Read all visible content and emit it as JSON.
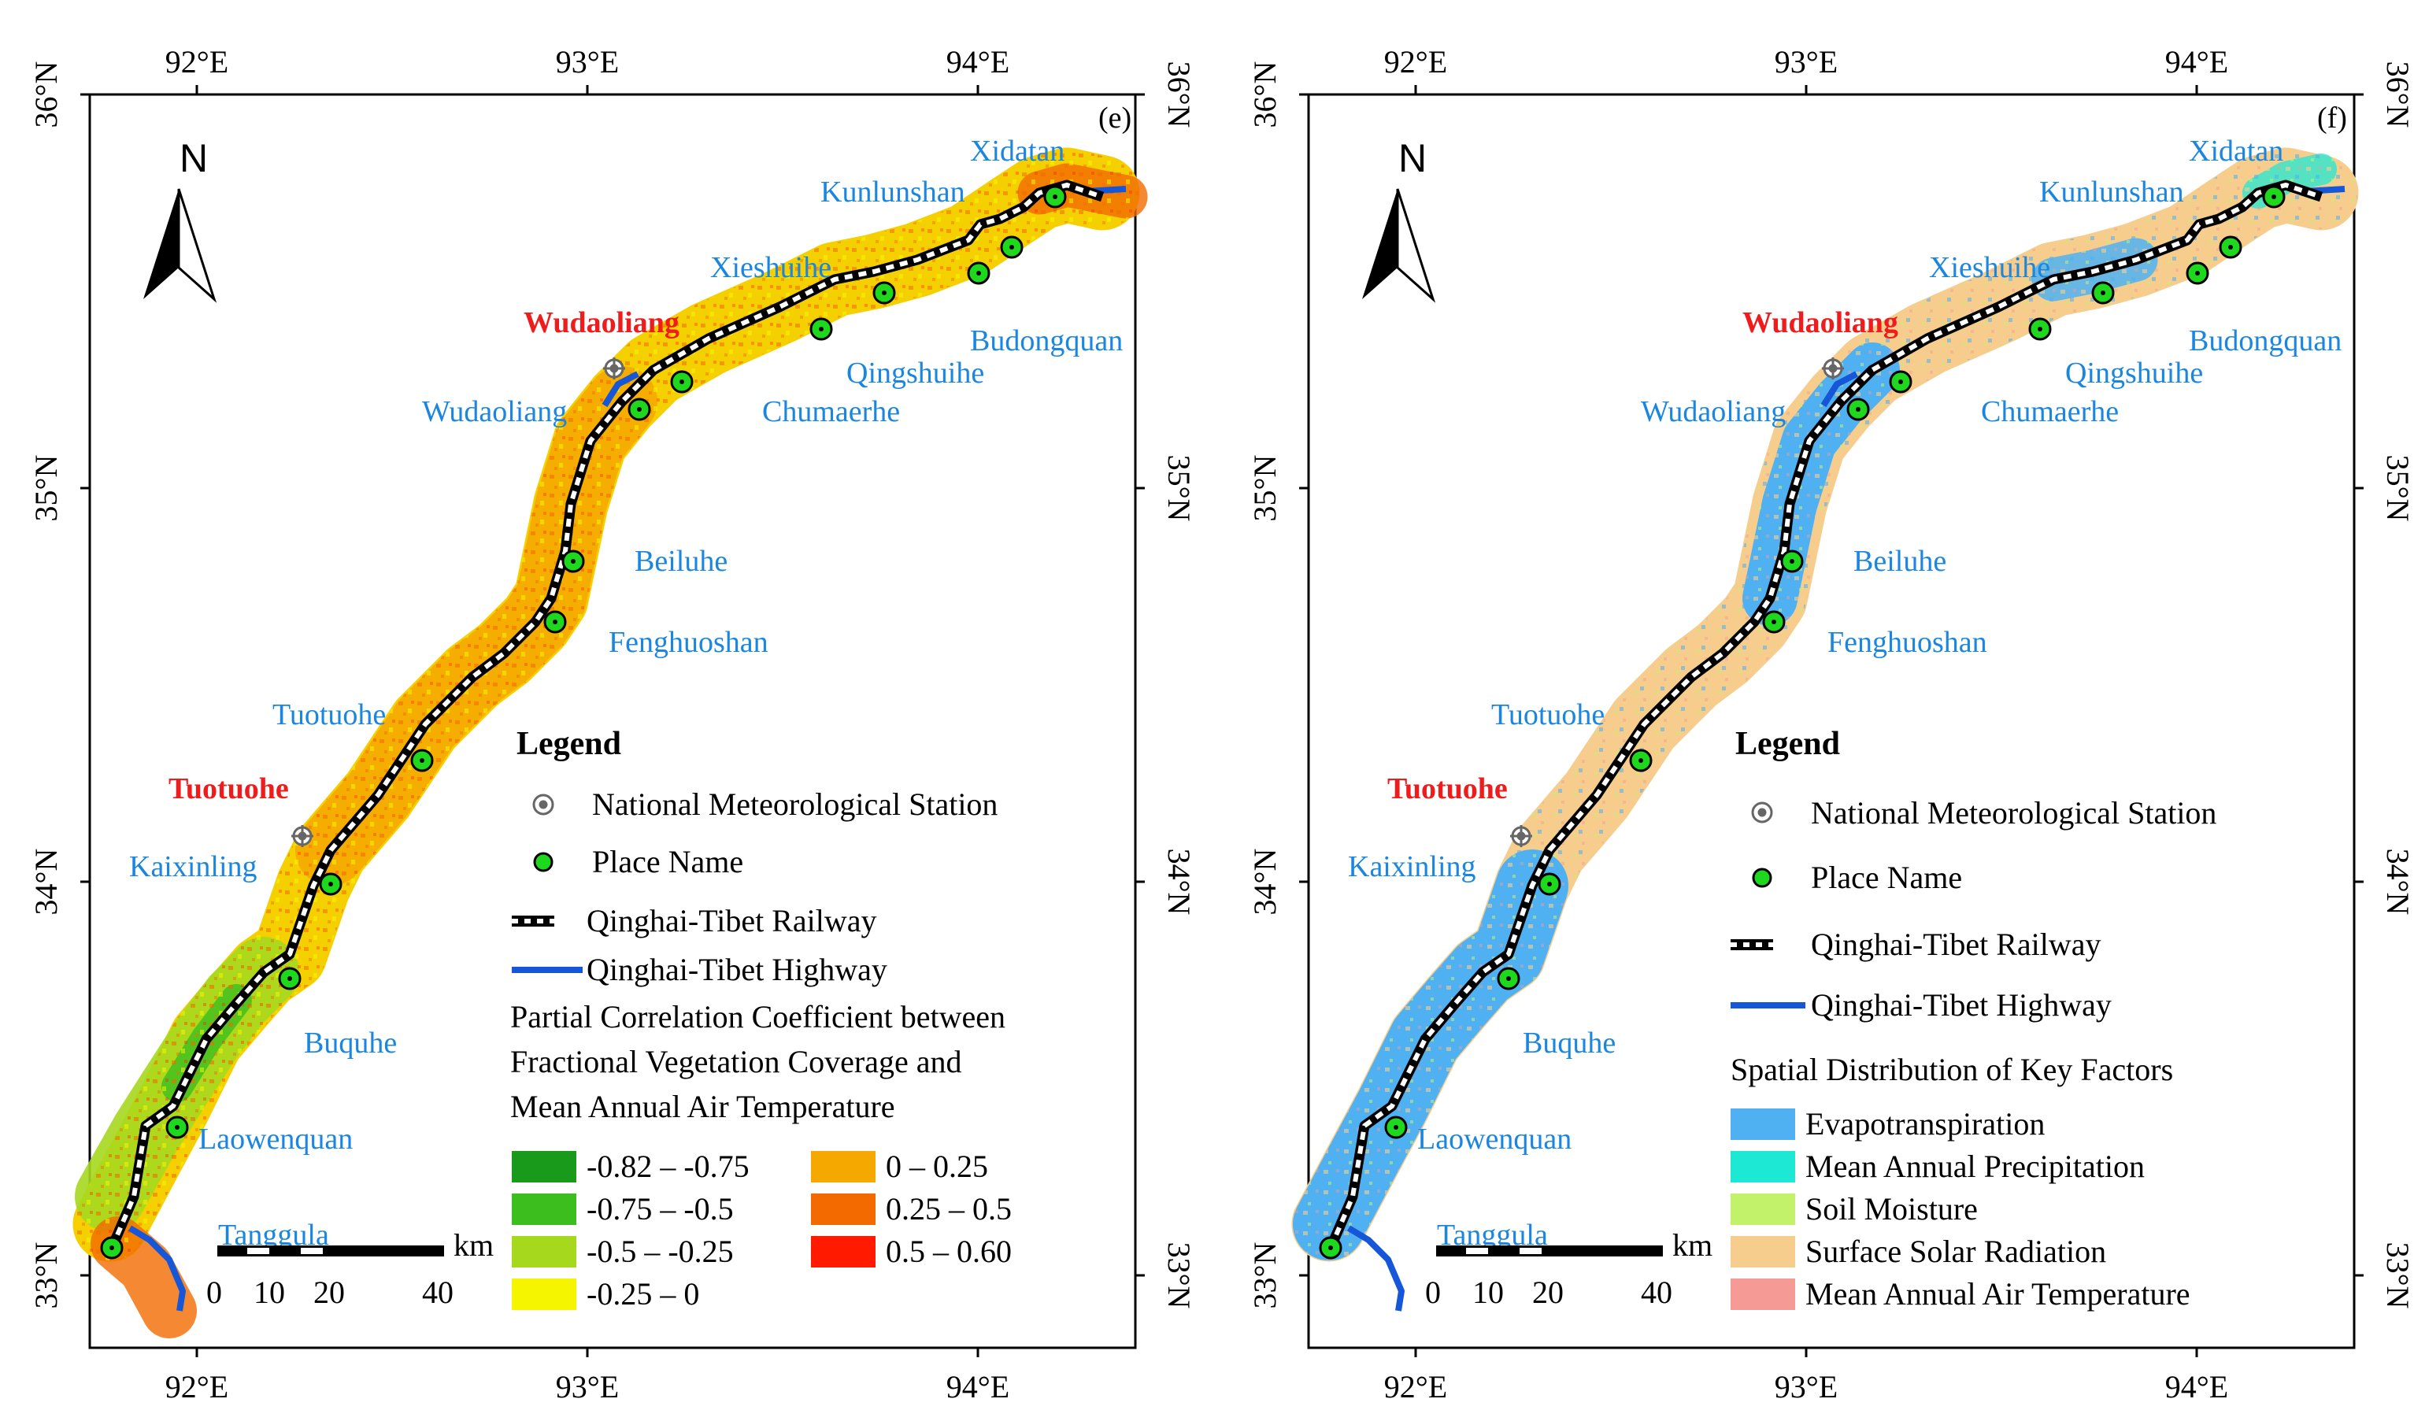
{
  "axes": {
    "top_ticks": [
      "92°E",
      "93°E",
      "94°E"
    ],
    "bottom_ticks": [
      "92°E",
      "93°E",
      "94°E"
    ],
    "left_ticks": [
      "36°N",
      "35°N",
      "34°N",
      "33°N"
    ],
    "right_ticks": [
      "36°N",
      "35°N",
      "34°N",
      "33°N"
    ]
  },
  "north_arrow": "N",
  "scale_bar": {
    "ticks": [
      "0",
      "10",
      "20",
      "40"
    ],
    "unit": "km"
  },
  "places": {
    "xidatan": "Xidatan",
    "kunlunshan": "Kunlunshan",
    "xieshuihe": "Xieshuihe",
    "budongquan": "Budongquan",
    "qingshuihe": "Qingshuihe",
    "chumaerhe": "Chumaerhe",
    "wudaoliang": "Wudaoliang",
    "beiluhe": "Beiluhe",
    "fenghuoshan": "Fenghuoshan",
    "tuotuohe": "Tuotuohe",
    "kaixinling": "Kaixinling",
    "buquhe": "Buquhe",
    "laowenquan": "Laowenquan",
    "tanggula": "Tanggula"
  },
  "stations": {
    "wudaoliang": "Wudaoliang",
    "tuotuohe": "Tuotuohe"
  },
  "panel_e": {
    "label": "(e)",
    "legend": {
      "title": "Legend",
      "station": "National Meteorological Station",
      "place": "Place Name",
      "railway": "Qinghai-Tibet Railway",
      "highway": "Qinghai-Tibet Highway",
      "caption_line1": "Partial Correlation Coefficient between",
      "caption_line2": "Fractional Vegetation Coverage and",
      "caption_line3": "Mean Annual Air Temperature",
      "classes": [
        {
          "label": "-0.82 – -0.75",
          "color": "#1a9a1a"
        },
        {
          "label": "-0.75 – -0.5",
          "color": "#3cbf1e"
        },
        {
          "label": "-0.5 – -0.25",
          "color": "#a6d81e"
        },
        {
          "label": "-0.25 – 0",
          "color": "#f5f500"
        },
        {
          "label": "0 – 0.25",
          "color": "#f5a800"
        },
        {
          "label": "0.25 – 0.5",
          "color": "#f26a00"
        },
        {
          "label": "0.5 – 0.60",
          "color": "#ff1a00"
        }
      ]
    }
  },
  "panel_f": {
    "label": "(f)",
    "legend": {
      "title": "Legend",
      "station": "National Meteorological Station",
      "place": "Place Name",
      "railway": "Qinghai-Tibet Railway",
      "highway": "Qinghai-Tibet Highway",
      "caption": "Spatial Distribution of Key Factors",
      "classes": [
        {
          "label": "Evapotranspiration",
          "color": "#4fb1f2"
        },
        {
          "label": "Mean Annual Precipitation",
          "color": "#1de8d4"
        },
        {
          "label": "Soil Moisture",
          "color": "#c2f26a"
        },
        {
          "label": "Surface Solar Radiation",
          "color": "#f7cd8e"
        },
        {
          "label": "Mean Annual Air Temperature",
          "color": "#f59a94"
        }
      ]
    }
  },
  "colors": {
    "place_blue": "#1a86e0",
    "station_red": "#ee1c1c",
    "highway": "#1557d8",
    "dot_green": "#1ed81e",
    "frame": "#000000"
  }
}
